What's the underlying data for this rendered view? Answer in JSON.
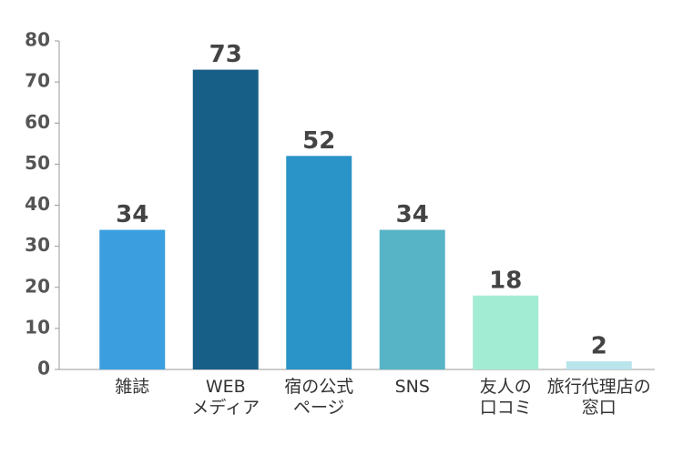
{
  "chart_data": {
    "type": "bar",
    "categories": [
      "雑誌",
      "WEB\nメディア",
      "宿の公式\nページ",
      "SNS",
      "友人の\n口コミ",
      "旅行代理店の\n窓口"
    ],
    "values": [
      34,
      73,
      52,
      34,
      18,
      2
    ],
    "colors": [
      "#3b9fdf",
      "#175f87",
      "#2a93c7",
      "#56b4c6",
      "#a3ecd4",
      "#b9e4eb"
    ],
    "ylim": [
      0,
      80
    ],
    "yticks": [
      0,
      10,
      20,
      30,
      40,
      50,
      60,
      70,
      80
    ],
    "grid": false
  }
}
